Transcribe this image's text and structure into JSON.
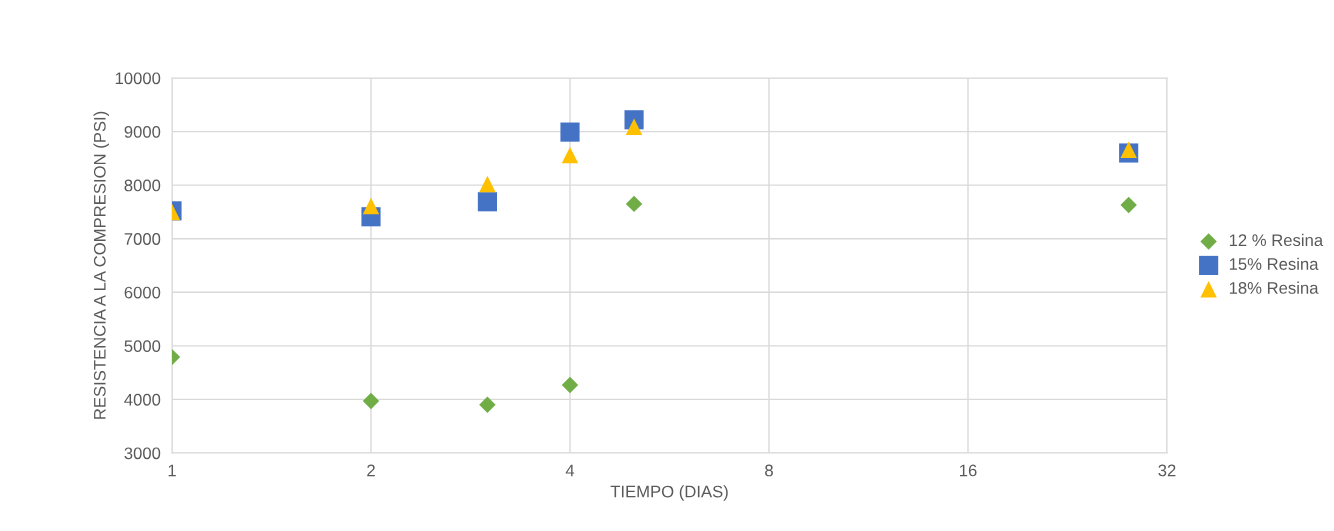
{
  "chart_data": {
    "type": "scatter",
    "xlabel": "TIEMPO (DIAS)",
    "ylabel": "RESISTENCIA A LA COMPRESION (PSI)",
    "x": [
      1,
      2,
      3,
      4,
      5,
      28
    ],
    "series": [
      {
        "name": "12 % Resina",
        "color": "#70ad47",
        "marker": "diamond",
        "values": [
          4790,
          3970,
          3900,
          4270,
          7650,
          7630
        ]
      },
      {
        "name": "15% Resina",
        "color": "#4472c4",
        "marker": "square",
        "values": [
          7520,
          7410,
          7690,
          8990,
          9220,
          8600
        ]
      },
      {
        "name": "18% Resina",
        "color": "#ffc000",
        "marker": "triangle",
        "values": [
          7500,
          7610,
          8020,
          8560,
          9090,
          8660
        ]
      }
    ],
    "log": "x",
    "xlim": [
      1,
      32
    ],
    "xticks": [
      1,
      2,
      4,
      8,
      16,
      32
    ],
    "ylim": [
      3000,
      10000
    ],
    "yticks": [
      3000,
      4000,
      5000,
      6000,
      7000,
      8000,
      9000,
      10000
    ],
    "grid": true,
    "legend": "right"
  }
}
